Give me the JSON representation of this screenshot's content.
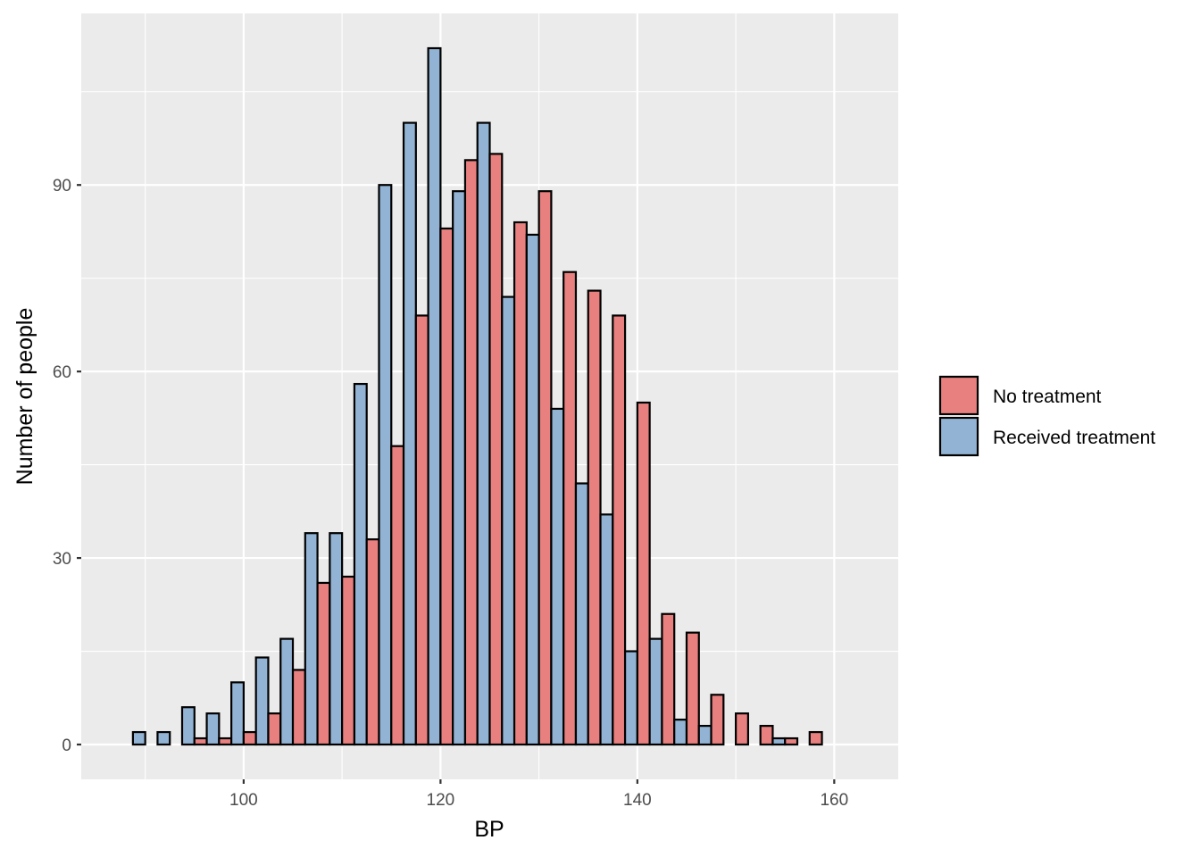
{
  "chart_data": {
    "type": "bar",
    "subtype": "histogram-dodged",
    "xlabel": "BP",
    "ylabel": "Number of people",
    "xlim": [
      83.5,
      166.5
    ],
    "ylim": [
      -5.6,
      117.6
    ],
    "xticks": [
      100,
      120,
      140,
      160
    ],
    "yticks": [
      0,
      30,
      60,
      90
    ],
    "grid": true,
    "legend_position": "right",
    "bin_width": 2.5,
    "bin_centers": [
      88.75,
      91.25,
      93.75,
      96.25,
      98.75,
      101.25,
      103.75,
      106.25,
      108.75,
      111.25,
      113.75,
      116.25,
      118.75,
      121.25,
      123.75,
      126.25,
      128.75,
      131.25,
      133.75,
      136.25,
      138.75,
      141.25,
      143.75,
      146.25,
      148.75,
      151.25,
      153.75,
      156.25,
      158.75,
      161.25
    ],
    "series": [
      {
        "name": "No treatment",
        "color": "#E8807F",
        "values": [
          0,
          0,
          0,
          1,
          1,
          2,
          5,
          12,
          26,
          27,
          33,
          48,
          69,
          83,
          94,
          95,
          84,
          89,
          76,
          73,
          69,
          55,
          21,
          18,
          8,
          5,
          3,
          1,
          2,
          0
        ]
      },
      {
        "name": "Received treatment",
        "color": "#92B3D4",
        "values": [
          2,
          2,
          6,
          5,
          10,
          14,
          17,
          34,
          34,
          58,
          90,
          100,
          112,
          89,
          100,
          72,
          82,
          54,
          42,
          37,
          15,
          17,
          4,
          3,
          0,
          0,
          1,
          0,
          0,
          0
        ]
      }
    ]
  }
}
